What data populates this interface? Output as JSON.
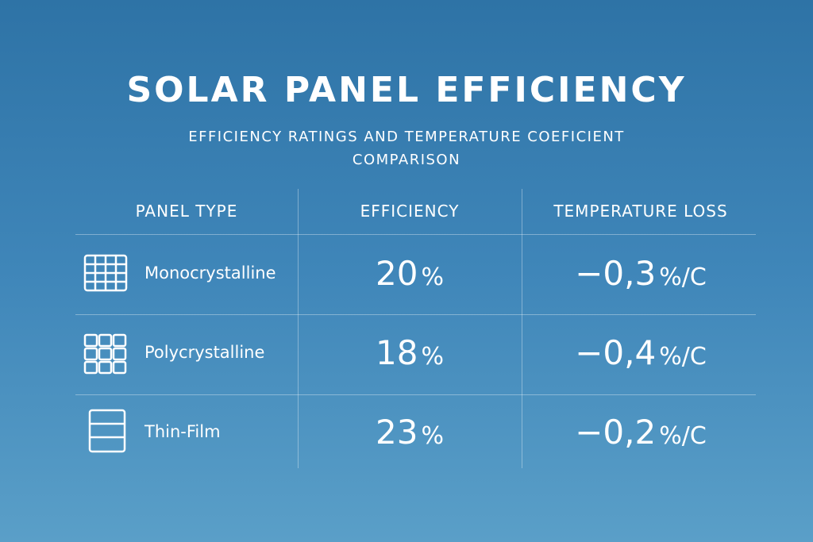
{
  "header": {
    "title": "SOLAR PANEL EFFICIENCY",
    "subtitle": "EFFICIENCY RATINGS AND TEMPERATURE COEFICIENT COMPARISON"
  },
  "table": {
    "columns": [
      "PANEL TYPE",
      "EFFICIENCY",
      "TEMPERATURE LOSS"
    ],
    "rows": [
      {
        "type": "Monocrystalline",
        "efficiency": {
          "number": "20",
          "unit": "%"
        },
        "temperature_loss": {
          "number": "−0,3",
          "unit": "%/C"
        }
      },
      {
        "type": "Polycrystalline",
        "efficiency": {
          "number": "18",
          "unit": "%"
        },
        "temperature_loss": {
          "number": "−0,4",
          "unit": "%/C"
        }
      },
      {
        "type": "Thin-Film",
        "efficiency": {
          "number": "23",
          "unit": "%"
        },
        "temperature_loss": {
          "number": "−0,2",
          "unit": "%/C"
        }
      }
    ]
  }
}
